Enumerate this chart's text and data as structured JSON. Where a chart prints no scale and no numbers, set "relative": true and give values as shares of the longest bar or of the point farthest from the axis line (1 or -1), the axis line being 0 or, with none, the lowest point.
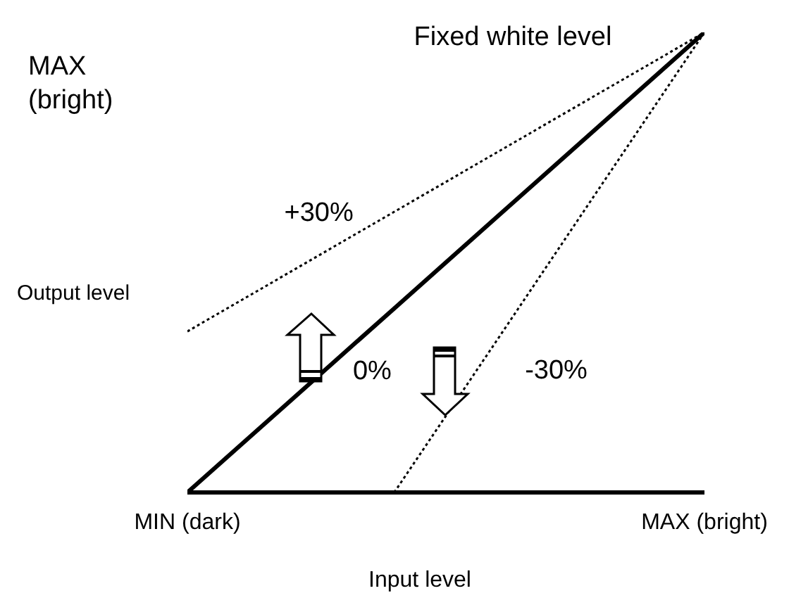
{
  "chart_data": {
    "type": "line",
    "relative": true,
    "title": "Fixed white level",
    "xlabel": "Input level",
    "ylabel": "Output level",
    "annotations": [
      "MAX\n(bright)"
    ],
    "categories": [
      "MIN (dark)",
      null,
      null,
      null,
      null,
      "MAX (bright)"
    ],
    "marker": "none",
    "series": [
      {
        "name": "+30%",
        "color": "#000000",
        "values": [
          0.35,
          0.48,
          0.61,
          0.74,
          0.87,
          1
        ],
        "line_style": "dotted"
      },
      {
        "name": "0%",
        "color": "#000000",
        "values": [
          0,
          0.2,
          0.4,
          0.6,
          0.8,
          1
        ],
        "line_style": "solid"
      },
      {
        "name": "-30%",
        "color": "#000000",
        "values": [
          null,
          null,
          0,
          0.333,
          0.667,
          1
        ],
        "line_style": "dotted"
      }
    ]
  }
}
